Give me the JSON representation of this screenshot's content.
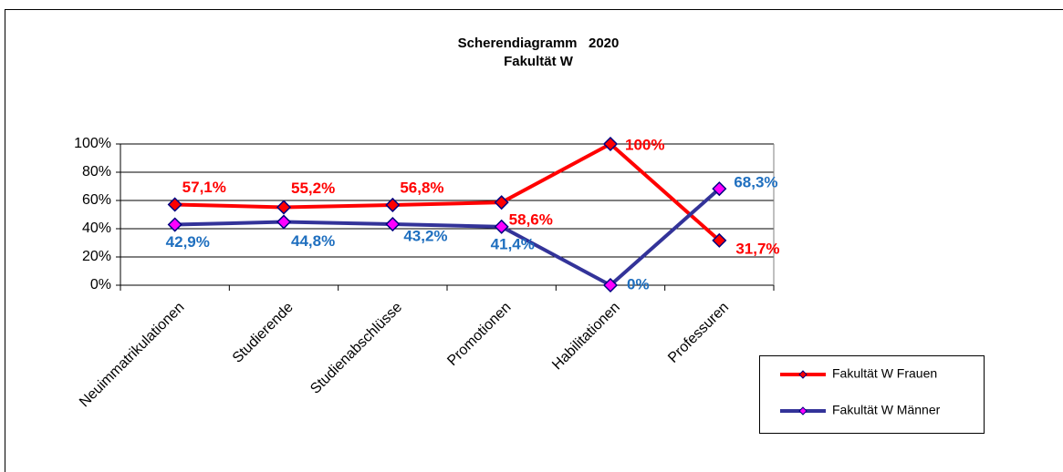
{
  "chart_data": {
    "type": "line",
    "title": "Scherendiagramm   2020",
    "subtitle": "Fakultät W",
    "categories": [
      "Neuimmatrikulationen",
      "Studierende",
      "Studienabschlüsse",
      "Promotionen",
      "Habilitationen",
      "Professuren"
    ],
    "series": [
      {
        "name": "Fakultät W Frauen",
        "color": "#ff0000",
        "marker_color": "#ff0000",
        "label_color": "#ff0000",
        "values": [
          57.1,
          55.2,
          56.8,
          58.6,
          100,
          31.7
        ],
        "value_labels": [
          "57,1%",
          "55,2%",
          "56,8%",
          "58,6%",
          "100%",
          "31,7%"
        ]
      },
      {
        "name": "Fakultät W Männer",
        "color": "#333399",
        "marker_color": "#ff00ff",
        "label_color": "#1f6fbf",
        "values": [
          42.9,
          44.8,
          43.2,
          41.4,
          0,
          68.3
        ],
        "value_labels": [
          "42,9%",
          "44,8%",
          "43,2%",
          "41,4%",
          "0%",
          "68,3%"
        ]
      }
    ],
    "ylim": [
      0,
      100
    ],
    "yticks": [
      {
        "value": 0,
        "label": "0%"
      },
      {
        "value": 20,
        "label": "20%"
      },
      {
        "value": 40,
        "label": "40%"
      },
      {
        "value": 60,
        "label": "60%"
      },
      {
        "value": 80,
        "label": "80%"
      },
      {
        "value": 100,
        "label": "100%"
      }
    ],
    "grid": true,
    "legend": "right"
  }
}
